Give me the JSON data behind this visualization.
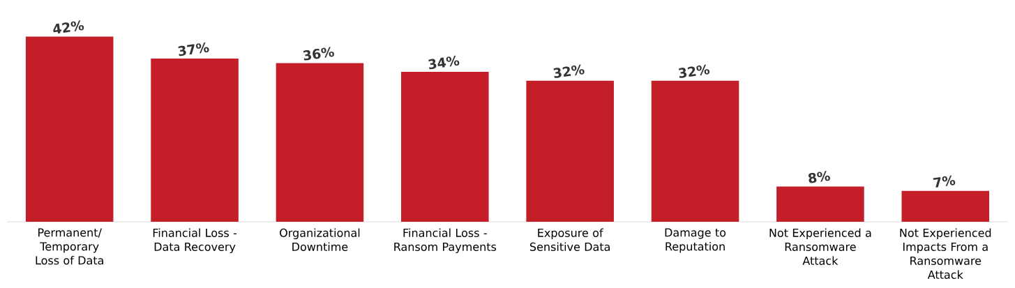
{
  "chart_data": {
    "type": "bar",
    "categories": [
      "Permanent/ Temporary Loss of Data",
      "Financial Loss - Data Recovery",
      "Organizational Downtime",
      "Financial Loss - Ransom Payments",
      "Exposure of Sensitive Data",
      "Damage to Reputation",
      "Not Experienced a Ransomware Attack",
      "Not Experienced Impacts From a Ransomware Attack"
    ],
    "values": [
      42,
      37,
      36,
      34,
      32,
      32,
      8,
      7
    ],
    "value_labels": [
      "42%",
      "37%",
      "36%",
      "34%",
      "32%",
      "32%",
      "8%",
      "7%"
    ],
    "color": "#c41f28"
  }
}
